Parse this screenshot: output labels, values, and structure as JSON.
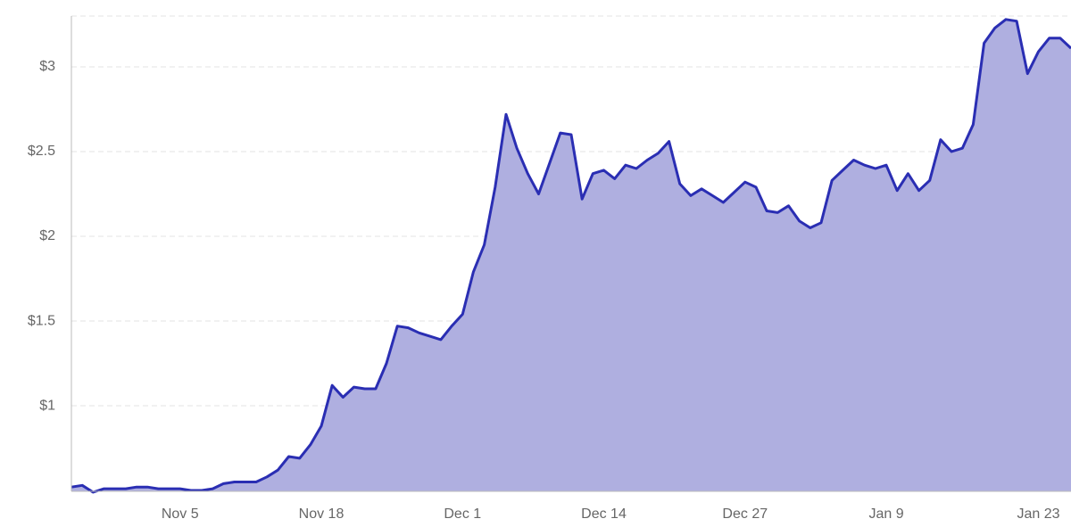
{
  "chart_data": {
    "type": "area",
    "categories": [
      null,
      null,
      null,
      null,
      null,
      null,
      null,
      null,
      null,
      null,
      "Nov 5",
      null,
      null,
      null,
      null,
      null,
      null,
      null,
      null,
      null,
      null,
      null,
      null,
      "Nov 18",
      null,
      null,
      null,
      null,
      null,
      null,
      null,
      null,
      null,
      null,
      null,
      null,
      "Dec 1",
      null,
      null,
      null,
      null,
      null,
      null,
      null,
      null,
      null,
      null,
      null,
      null,
      "Dec 14",
      null,
      null,
      null,
      null,
      null,
      null,
      null,
      null,
      null,
      null,
      null,
      null,
      "Dec 27",
      null,
      null,
      null,
      null,
      null,
      null,
      null,
      null,
      null,
      null,
      null,
      null,
      "Jan 9",
      null,
      null,
      null,
      null,
      null,
      null,
      null,
      null,
      null,
      null,
      null,
      null,
      null,
      "Jan 23",
      null,
      null,
      null
    ],
    "values": [
      0.52,
      0.53,
      0.49,
      0.51,
      0.51,
      0.51,
      0.52,
      0.52,
      0.51,
      0.51,
      0.51,
      0.5,
      0.5,
      0.51,
      0.54,
      0.55,
      0.55,
      0.55,
      0.58,
      0.62,
      0.7,
      0.69,
      0.77,
      0.88,
      1.12,
      1.05,
      1.11,
      1.1,
      1.1,
      1.25,
      1.47,
      1.46,
      1.43,
      1.41,
      1.39,
      1.47,
      1.54,
      1.79,
      1.95,
      2.29,
      2.72,
      2.52,
      2.37,
      2.25,
      2.43,
      2.61,
      2.6,
      2.22,
      2.37,
      2.39,
      2.34,
      2.42,
      2.4,
      2.45,
      2.49,
      2.56,
      2.31,
      2.24,
      2.28,
      2.24,
      2.2,
      2.26,
      2.32,
      2.29,
      2.15,
      2.14,
      2.18,
      2.09,
      2.05,
      2.08,
      2.33,
      2.39,
      2.45,
      2.42,
      2.4,
      2.42,
      2.27,
      2.37,
      2.27,
      2.33,
      2.57,
      2.5,
      2.52,
      2.66,
      3.14,
      3.23,
      3.28,
      3.27,
      2.96,
      3.09,
      3.17,
      3.17,
      3.11
    ],
    "color": "#2a2eb3",
    "fill_color": "#afafe0",
    "ylim": [
      0.495,
      3.3
    ],
    "yticks": [
      {
        "value": 1,
        "label": "$1"
      },
      {
        "value": 1.5,
        "label": "$1.5"
      },
      {
        "value": 2,
        "label": "$2"
      },
      {
        "value": 2.5,
        "label": "$2.5"
      },
      {
        "value": 3,
        "label": "$3"
      }
    ],
    "grid": true
  }
}
